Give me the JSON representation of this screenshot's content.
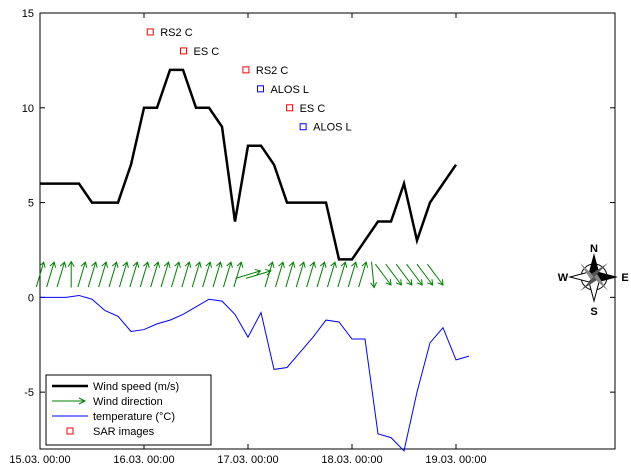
{
  "chart_data": {
    "type": "line",
    "title": "",
    "xlabel": "",
    "ylabel": "",
    "xlim": [
      0,
      4
    ],
    "ylim": [
      -8,
      15
    ],
    "x_ticks": [
      {
        "x": 0,
        "label": "15.03. 00:00"
      },
      {
        "x": 1,
        "label": "16.03. 00:00"
      },
      {
        "x": 2,
        "label": "17.03. 00:00"
      },
      {
        "x": 3,
        "label": "18.03. 00:00"
      },
      {
        "x": 4,
        "label": "19.03. 00:00"
      }
    ],
    "y_ticks": [
      {
        "y": 15,
        "label": "15"
      },
      {
        "y": 10,
        "label": "10"
      },
      {
        "y": 5,
        "label": "5"
      },
      {
        "y": 0,
        "label": "0"
      },
      {
        "y": -5,
        "label": "-5"
      }
    ],
    "series": [
      {
        "name": "Wind speed (m/s)",
        "color": "#000000",
        "points": [
          [
            0.0,
            6
          ],
          [
            0.125,
            6
          ],
          [
            0.25,
            6
          ],
          [
            0.375,
            6
          ],
          [
            0.5,
            5
          ],
          [
            0.625,
            5
          ],
          [
            0.75,
            5
          ],
          [
            0.875,
            7
          ],
          [
            1.0,
            10
          ],
          [
            1.125,
            10
          ],
          [
            1.25,
            12
          ],
          [
            1.375,
            12
          ],
          [
            1.5,
            10
          ],
          [
            1.625,
            10
          ],
          [
            1.75,
            9
          ],
          [
            1.875,
            4
          ],
          [
            2.0,
            8
          ],
          [
            2.125,
            8
          ],
          [
            2.25,
            7
          ],
          [
            2.375,
            5
          ],
          [
            2.5,
            5
          ],
          [
            2.625,
            5
          ],
          [
            2.75,
            5
          ],
          [
            2.875,
            2
          ],
          [
            3.0,
            2
          ],
          [
            3.125,
            3
          ],
          [
            3.25,
            4
          ],
          [
            3.375,
            4
          ],
          [
            3.5,
            6
          ],
          [
            3.625,
            3
          ],
          [
            3.75,
            5
          ],
          [
            3.875,
            6
          ],
          [
            4.0,
            7
          ]
        ]
      },
      {
        "name": "temperature (°C)",
        "color": "#0000ff",
        "points": [
          [
            0.0,
            0
          ],
          [
            0.25,
            0
          ],
          [
            0.375,
            0.1
          ],
          [
            0.5,
            -0.1
          ],
          [
            0.625,
            -0.7
          ],
          [
            0.75,
            -1
          ],
          [
            0.875,
            -1.8
          ],
          [
            1.0,
            -1.7
          ],
          [
            1.125,
            -1.4
          ],
          [
            1.25,
            -1.2
          ],
          [
            1.375,
            -0.9
          ],
          [
            1.5,
            -0.5
          ],
          [
            1.625,
            -0.1
          ],
          [
            1.75,
            -0.2
          ],
          [
            1.875,
            -0.9
          ],
          [
            2.0,
            -2.1
          ],
          [
            2.125,
            -0.8
          ],
          [
            2.25,
            -3.8
          ],
          [
            2.375,
            -3.7
          ],
          [
            2.5,
            -2.9
          ],
          [
            2.625,
            -2.1
          ],
          [
            2.75,
            -1.2
          ],
          [
            2.875,
            -1.3
          ],
          [
            3.0,
            -2.2
          ],
          [
            3.125,
            -2.2
          ],
          [
            3.25,
            -7.2
          ],
          [
            3.375,
            -7.4
          ],
          [
            3.5,
            -8.1
          ],
          [
            3.625,
            -5
          ],
          [
            3.75,
            -2.4
          ],
          [
            3.875,
            -1.6
          ],
          [
            4.0,
            -3.3
          ],
          [
            4.125,
            -3.1
          ]
        ]
      }
    ],
    "wind_direction": {
      "name": "Wind direction",
      "color": "#008000",
      "arrows": [
        {
          "x": 0.0,
          "dir": "up-right"
        },
        {
          "x": 0.1,
          "dir": "up-right"
        },
        {
          "x": 0.2,
          "dir": "up-right"
        },
        {
          "x": 0.3,
          "dir": "up"
        },
        {
          "x": 0.4,
          "dir": "up-right"
        },
        {
          "x": 0.5,
          "dir": "up-right"
        },
        {
          "x": 0.6,
          "dir": "up-right"
        },
        {
          "x": 0.7,
          "dir": "up-right"
        },
        {
          "x": 0.8,
          "dir": "up-right"
        },
        {
          "x": 0.9,
          "dir": "up-right"
        },
        {
          "x": 1.0,
          "dir": "up-right"
        },
        {
          "x": 1.1,
          "dir": "up-right"
        },
        {
          "x": 1.2,
          "dir": "up-right"
        },
        {
          "x": 1.3,
          "dir": "up-right"
        },
        {
          "x": 1.4,
          "dir": "up-right"
        },
        {
          "x": 1.5,
          "dir": "up-right"
        },
        {
          "x": 1.6,
          "dir": "up-right"
        },
        {
          "x": 1.7,
          "dir": "up-right"
        },
        {
          "x": 1.8,
          "dir": "up-right"
        },
        {
          "x": 1.9,
          "dir": "up-right"
        },
        {
          "x": 2.0,
          "dir": "right"
        },
        {
          "x": 2.1,
          "dir": "right"
        },
        {
          "x": 2.2,
          "dir": "up-right"
        },
        {
          "x": 2.3,
          "dir": "up-right"
        },
        {
          "x": 2.4,
          "dir": "up-right"
        },
        {
          "x": 2.5,
          "dir": "up-right"
        },
        {
          "x": 2.6,
          "dir": "up-right"
        },
        {
          "x": 2.7,
          "dir": "up-right"
        },
        {
          "x": 2.8,
          "dir": "up-right"
        },
        {
          "x": 2.9,
          "dir": "up-right"
        },
        {
          "x": 3.0,
          "dir": "up-right"
        },
        {
          "x": 3.1,
          "dir": "up-right"
        },
        {
          "x": 3.2,
          "dir": "down"
        },
        {
          "x": 3.3,
          "dir": "down-right"
        },
        {
          "x": 3.4,
          "dir": "down-right"
        },
        {
          "x": 3.5,
          "dir": "down-right"
        },
        {
          "x": 3.6,
          "dir": "down-right"
        },
        {
          "x": 3.7,
          "dir": "down-right"
        },
        {
          "x": 3.8,
          "dir": "down-right"
        }
      ]
    },
    "sar_images": [
      {
        "x": 1.06,
        "y": 14.0,
        "label": "RS2 C",
        "color": "#ff0000"
      },
      {
        "x": 1.38,
        "y": 13.0,
        "label": "ES C",
        "color": "#ff0000"
      },
      {
        "x": 1.98,
        "y": 12.0,
        "label": "RS2 C",
        "color": "#ff0000"
      },
      {
        "x": 2.12,
        "y": 11.0,
        "label": "ALOS L",
        "color": "#0000ff"
      },
      {
        "x": 2.4,
        "y": 10.0,
        "label": "ES C",
        "color": "#ff0000"
      },
      {
        "x": 2.53,
        "y": 9.0,
        "label": "ALOS L",
        "color": "#0000ff"
      }
    ],
    "legend": {
      "position": "bottom-left",
      "entries": [
        {
          "label": "Wind speed (m/s)"
        },
        {
          "label": "Wind direction"
        },
        {
          "label": "temperature (°C)"
        },
        {
          "label": "SAR images"
        }
      ]
    },
    "compass": {
      "n": "N",
      "s": "S",
      "e": "E",
      "w": "W"
    },
    "grid": false
  }
}
